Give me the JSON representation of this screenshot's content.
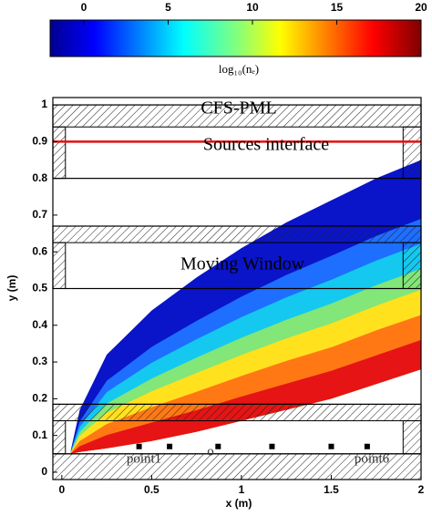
{
  "chart_data": {
    "type": "contour",
    "colorbar": {
      "label": "log₁₀(nₑ)",
      "clim": [
        -2,
        20
      ],
      "ticks": [
        0,
        5,
        10,
        15,
        20
      ]
    },
    "x_label": "x (m)",
    "y_label": "y (m)",
    "xlim": [
      -0.05,
      2
    ],
    "ylim": [
      -0.02,
      1.02
    ],
    "xticks": [
      0,
      0.5,
      1,
      1.5,
      2
    ],
    "yticks": [
      0,
      0.1,
      0.2,
      0.3,
      0.4,
      0.5,
      0.6,
      0.7,
      0.8,
      0.9,
      1
    ],
    "x_samples": [
      0.05,
      0.1,
      0.25,
      0.5,
      0.75,
      1,
      1.25,
      1.5,
      1.75,
      2
    ],
    "lower": [
      0.05,
      0.055,
      0.065,
      0.085,
      0.11,
      0.14,
      0.17,
      0.2,
      0.24,
      0.28
    ],
    "regions": [
      {
        "color": "#0a14c8",
        "upper": [
          0.06,
          0.17,
          0.32,
          0.44,
          0.53,
          0.61,
          0.68,
          0.74,
          0.8,
          0.85
        ]
      },
      {
        "color": "#1e6eff",
        "upper": [
          0.057,
          0.138,
          0.249,
          0.341,
          0.412,
          0.478,
          0.537,
          0.589,
          0.643,
          0.69
        ]
      },
      {
        "color": "#14c8f0",
        "upper": [
          0.056,
          0.124,
          0.218,
          0.298,
          0.362,
          0.422,
          0.476,
          0.524,
          0.576,
          0.622
        ]
      },
      {
        "color": "#82e678",
        "upper": [
          0.055,
          0.11,
          0.187,
          0.255,
          0.312,
          0.366,
          0.415,
          0.459,
          0.509,
          0.554
        ]
      },
      {
        "color": "#ffe11e",
        "upper": [
          0.054,
          0.099,
          0.162,
          0.22,
          0.27,
          0.319,
          0.364,
          0.405,
          0.453,
          0.497
        ]
      },
      {
        "color": "#ff7814",
        "upper": [
          0.053,
          0.085,
          0.131,
          0.177,
          0.219,
          0.262,
          0.303,
          0.34,
          0.386,
          0.428
        ]
      },
      {
        "color": "#e61414",
        "upper": [
          0.051,
          0.071,
          0.101,
          0.135,
          0.169,
          0.206,
          0.241,
          0.276,
          0.318,
          0.36
        ]
      }
    ],
    "hatched": [
      [
        -0.05,
        0.94,
        2,
        1.0
      ],
      [
        -0.05,
        0.8,
        0.02,
        0.94
      ],
      [
        1.9,
        0.8,
        2,
        0.94
      ],
      [
        -0.05,
        0.625,
        2,
        0.67
      ],
      [
        -0.05,
        0.5,
        0.02,
        0.625
      ],
      [
        1.9,
        0.5,
        2,
        0.625
      ],
      [
        -0.05,
        0.14,
        2,
        0.185
      ],
      [
        -0.05,
        0.05,
        0.02,
        0.14
      ],
      [
        1.9,
        0.05,
        2,
        0.14
      ],
      [
        -0.05,
        -0.02,
        2,
        0.05
      ]
    ],
    "outlines": [
      [
        -0.05,
        0.8,
        2,
        1.0
      ],
      [
        -0.05,
        0.5,
        2,
        0.67
      ],
      [
        -0.05,
        0.05,
        2,
        0.185
      ]
    ],
    "source_line": {
      "y": 0.9,
      "color": "#e01010"
    },
    "points": {
      "x": [
        0.43,
        0.6,
        0.87,
        1.17,
        1.5,
        1.7
      ],
      "y": 0.07
    },
    "annotations": [
      "CFS-PML",
      "Sources interface",
      "Moving Window",
      "point1",
      "o",
      "point6"
    ]
  }
}
